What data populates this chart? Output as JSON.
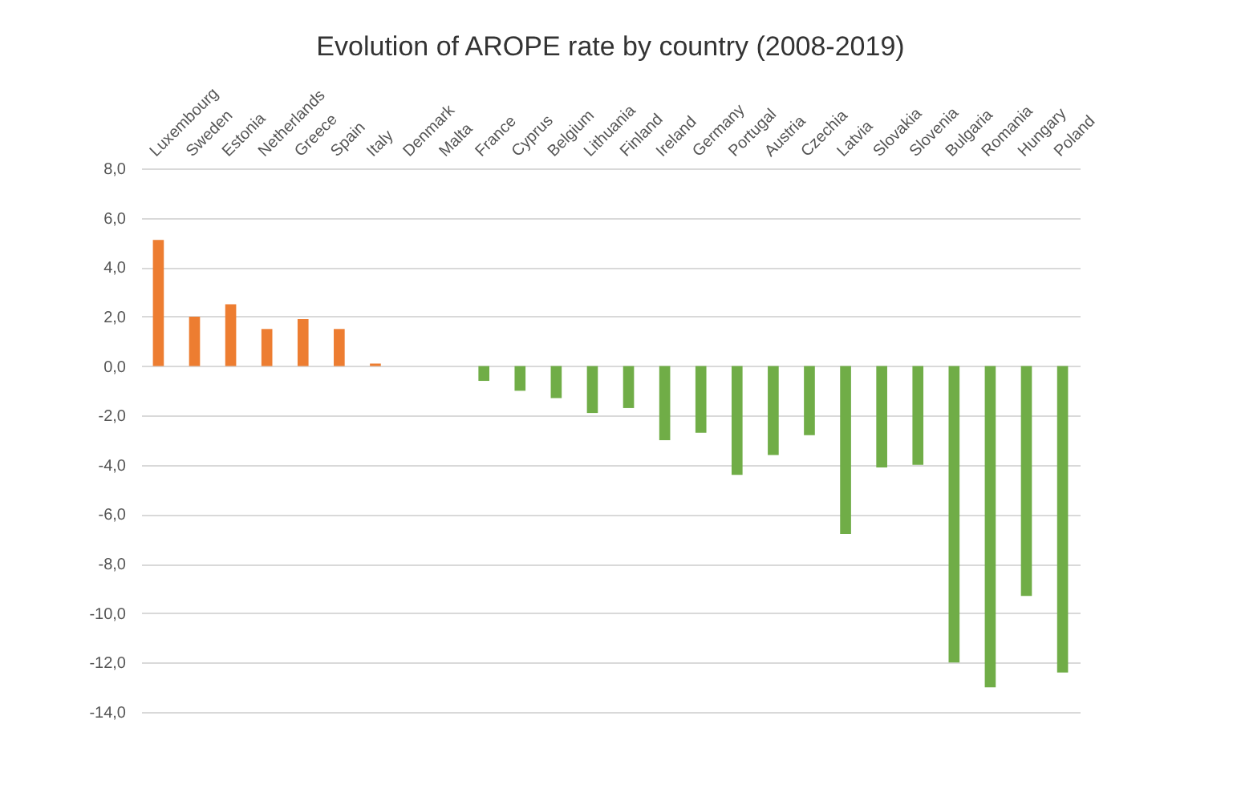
{
  "chart_data": {
    "type": "bar",
    "title": "Evolution of AROPE rate by country (2008-2019)",
    "categories": [
      "Luxembourg",
      "Sweden",
      "Estonia",
      "Netherlands",
      "Greece",
      "Spain",
      "Italy",
      "Denmark",
      "Malta",
      "France",
      "Cyprus",
      "Belgium",
      "Lithuania",
      "Finland",
      "Ireland",
      "Germany",
      "Portugal",
      "Austria",
      "Czechia",
      "Latvia",
      "Slovakia",
      "Slovenia",
      "Bulgaria",
      "Romania",
      "Hungary",
      "Poland"
    ],
    "values": [
      5.1,
      2.0,
      2.5,
      1.5,
      1.9,
      1.5,
      0.1,
      0,
      0,
      -0.6,
      -1.0,
      -1.3,
      -1.9,
      -1.7,
      -3.0,
      -2.7,
      -4.4,
      -3.6,
      -2.8,
      -6.8,
      -4.1,
      -4.0,
      -12.0,
      -13.0,
      -9.3,
      -12.4
    ],
    "colors": [
      "#ed7d31",
      "#ed7d31",
      "#ed7d31",
      "#ed7d31",
      "#ed7d31",
      "#ed7d31",
      "#ed7d31",
      "#70ad47",
      "#70ad47",
      "#70ad47",
      "#70ad47",
      "#70ad47",
      "#70ad47",
      "#70ad47",
      "#70ad47",
      "#70ad47",
      "#70ad47",
      "#70ad47",
      "#70ad47",
      "#70ad47",
      "#70ad47",
      "#70ad47",
      "#70ad47",
      "#70ad47",
      "#70ad47",
      "#70ad47"
    ],
    "ylim": [
      -14,
      8
    ],
    "yticks": [
      {
        "value": 8,
        "label": "8,0"
      },
      {
        "value": 6,
        "label": "6,0"
      },
      {
        "value": 4,
        "label": "4,0"
      },
      {
        "value": 2,
        "label": "2,0"
      },
      {
        "value": 0,
        "label": "0,0"
      },
      {
        "value": -2,
        "label": "-2,0"
      },
      {
        "value": -4,
        "label": "-4,0"
      },
      {
        "value": -6,
        "label": "-6,0"
      },
      {
        "value": -8,
        "label": "-8,0"
      },
      {
        "value": -10,
        "label": "-10,0"
      },
      {
        "value": -12,
        "label": "-12,0"
      },
      {
        "value": -14,
        "label": "-14,0"
      }
    ],
    "grid": "y"
  }
}
